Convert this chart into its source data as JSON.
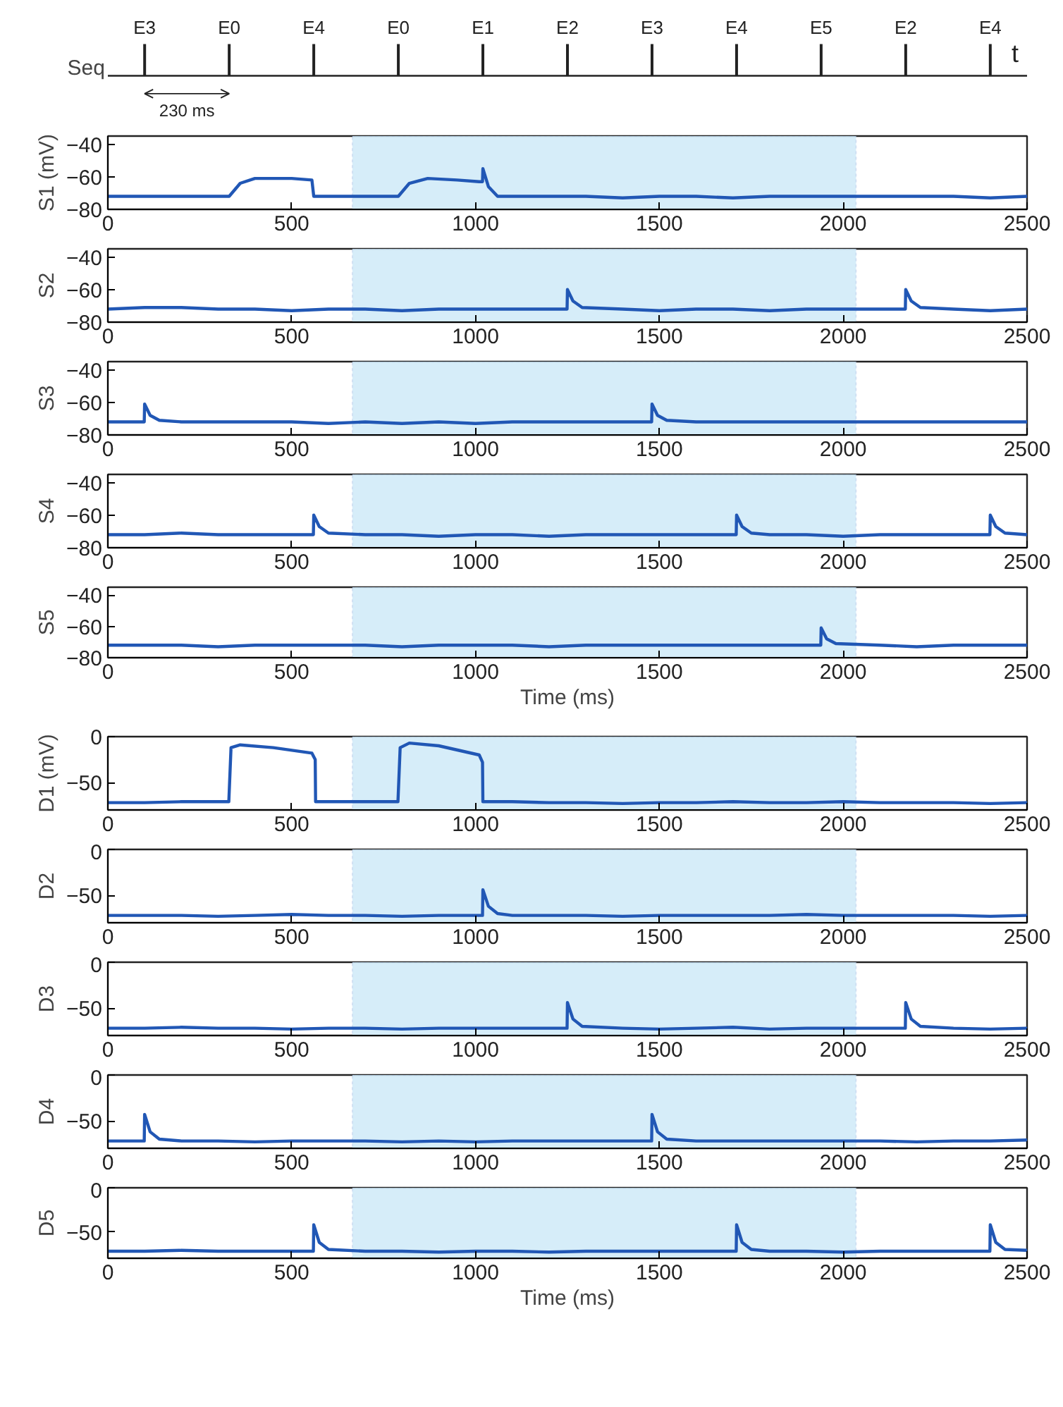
{
  "chart_data": [
    {
      "type": "other",
      "ylabel": "Seq",
      "xlabel": "t",
      "categories": [
        "E3",
        "E0",
        "E4",
        "E0",
        "E1",
        "E2",
        "E3",
        "E4",
        "E5",
        "E2",
        "E4"
      ],
      "annotations": [
        "230 ms"
      ]
    },
    {
      "type": "line",
      "ylabel": "S1 (mV)",
      "color": "#2157b5",
      "xlim": [
        0,
        2500
      ],
      "ylim": [
        -80,
        -35
      ],
      "xticks": [
        0,
        500,
        1000,
        1500,
        2000,
        2500
      ],
      "yticks": [
        -40,
        -60,
        -80
      ],
      "bands": [
        {
          "axis": "x",
          "from": 665,
          "to": 2035,
          "color": "#cfeaf8"
        }
      ],
      "x": [
        0,
        100,
        200,
        300,
        330,
        360,
        400,
        500,
        555,
        560,
        600,
        700,
        790,
        820,
        870,
        950,
        1010,
        1019,
        1020,
        1035,
        1060,
        1100,
        1200,
        1300,
        1400,
        1500,
        1600,
        1700,
        1800,
        1900,
        2000,
        2100,
        2200,
        2300,
        2400,
        2500
      ],
      "values": [
        -72,
        -72,
        -72,
        -72,
        -72,
        -64,
        -61,
        -61,
        -62,
        -72,
        -72,
        -72,
        -72,
        -64,
        -61,
        -62,
        -63,
        -63,
        -55,
        -66,
        -72,
        -72,
        -72,
        -72,
        -73,
        -72,
        -72,
        -73,
        -72,
        -72,
        -72,
        -72,
        -72,
        -72,
        -73,
        -72
      ]
    },
    {
      "type": "line",
      "ylabel": "S2",
      "color": "#2157b5",
      "xlim": [
        0,
        2500
      ],
      "ylim": [
        -80,
        -35
      ],
      "xticks": [
        0,
        500,
        1000,
        1500,
        2000,
        2500
      ],
      "yticks": [
        -40,
        -60,
        -80
      ],
      "bands": [
        {
          "axis": "x",
          "from": 665,
          "to": 2035,
          "color": "#cfeaf8"
        }
      ],
      "x": [
        0,
        100,
        200,
        300,
        400,
        500,
        600,
        700,
        800,
        900,
        1000,
        1100,
        1200,
        1249,
        1250,
        1265,
        1290,
        1400,
        1500,
        1600,
        1700,
        1800,
        1900,
        2000,
        2100,
        2169,
        2170,
        2185,
        2210,
        2300,
        2400,
        2500
      ],
      "values": [
        -72,
        -71,
        -71,
        -72,
        -72,
        -73,
        -72,
        -72,
        -73,
        -72,
        -72,
        -72,
        -72,
        -72,
        -60,
        -67,
        -71,
        -72,
        -73,
        -72,
        -72,
        -73,
        -72,
        -72,
        -72,
        -72,
        -60,
        -67,
        -71,
        -72,
        -73,
        -72
      ]
    },
    {
      "type": "line",
      "ylabel": "S3",
      "color": "#2157b5",
      "xlim": [
        0,
        2500
      ],
      "ylim": [
        -80,
        -35
      ],
      "xticks": [
        0,
        500,
        1000,
        1500,
        2000,
        2500
      ],
      "yticks": [
        -40,
        -60,
        -80
      ],
      "bands": [
        {
          "axis": "x",
          "from": 665,
          "to": 2035,
          "color": "#cfeaf8"
        }
      ],
      "x": [
        0,
        99,
        100,
        115,
        140,
        200,
        300,
        400,
        500,
        600,
        700,
        800,
        900,
        1000,
        1100,
        1200,
        1300,
        1400,
        1479,
        1480,
        1495,
        1520,
        1600,
        1700,
        1800,
        1900,
        2000,
        2100,
        2200,
        2300,
        2400,
        2500
      ],
      "values": [
        -72,
        -72,
        -61,
        -68,
        -71,
        -72,
        -72,
        -72,
        -72,
        -73,
        -72,
        -73,
        -72,
        -73,
        -72,
        -72,
        -72,
        -72,
        -72,
        -61,
        -68,
        -71,
        -72,
        -72,
        -72,
        -72,
        -72,
        -72,
        -72,
        -72,
        -72,
        -72
      ]
    },
    {
      "type": "line",
      "ylabel": "S4",
      "color": "#2157b5",
      "xlim": [
        0,
        2500
      ],
      "ylim": [
        -80,
        -35
      ],
      "xticks": [
        0,
        500,
        1000,
        1500,
        2000,
        2500
      ],
      "yticks": [
        -40,
        -60,
        -80
      ],
      "bands": [
        {
          "axis": "x",
          "from": 665,
          "to": 2035,
          "color": "#cfeaf8"
        }
      ],
      "x": [
        0,
        100,
        200,
        300,
        400,
        500,
        559,
        560,
        575,
        600,
        700,
        800,
        900,
        1000,
        1100,
        1200,
        1300,
        1400,
        1500,
        1600,
        1709,
        1710,
        1725,
        1750,
        1800,
        1900,
        2000,
        2100,
        2200,
        2300,
        2399,
        2400,
        2415,
        2440,
        2500
      ],
      "values": [
        -72,
        -72,
        -71,
        -72,
        -72,
        -72,
        -72,
        -60,
        -67,
        -71,
        -72,
        -72,
        -73,
        -72,
        -72,
        -73,
        -72,
        -72,
        -72,
        -72,
        -72,
        -60,
        -67,
        -71,
        -72,
        -72,
        -73,
        -72,
        -72,
        -72,
        -72,
        -60,
        -67,
        -71,
        -72
      ]
    },
    {
      "type": "line",
      "ylabel": "S5",
      "xlabel": "Time (ms)",
      "color": "#2157b5",
      "xlim": [
        0,
        2500
      ],
      "ylim": [
        -80,
        -35
      ],
      "xticks": [
        0,
        500,
        1000,
        1500,
        2000,
        2500
      ],
      "yticks": [
        -40,
        -60,
        -80
      ],
      "bands": [
        {
          "axis": "x",
          "from": 665,
          "to": 2035,
          "color": "#cfeaf8"
        }
      ],
      "x": [
        0,
        100,
        200,
        300,
        400,
        500,
        600,
        700,
        800,
        900,
        1000,
        1100,
        1200,
        1300,
        1400,
        1500,
        1600,
        1700,
        1800,
        1939,
        1940,
        1955,
        1980,
        2100,
        2200,
        2300,
        2400,
        2500
      ],
      "values": [
        -72,
        -72,
        -72,
        -73,
        -72,
        -72,
        -72,
        -72,
        -73,
        -72,
        -72,
        -72,
        -73,
        -72,
        -72,
        -72,
        -72,
        -72,
        -72,
        -72,
        -61,
        -68,
        -71,
        -72,
        -73,
        -72,
        -72,
        -72
      ]
    },
    {
      "type": "line",
      "ylabel": "D1 (mV)",
      "color": "#2157b5",
      "xlim": [
        0,
        2500
      ],
      "ylim": [
        -80,
        0
      ],
      "xticks": [
        0,
        500,
        1000,
        1500,
        2000,
        2500
      ],
      "yticks": [
        0,
        -50
      ],
      "bands": [
        {
          "axis": "x",
          "from": 665,
          "to": 2035,
          "color": "#cfeaf8"
        }
      ],
      "x": [
        0,
        100,
        200,
        300,
        329,
        335,
        360,
        450,
        555,
        564,
        565,
        600,
        700,
        789,
        795,
        820,
        900,
        1010,
        1019,
        1020,
        1100,
        1200,
        1300,
        1400,
        1500,
        1600,
        1700,
        1800,
        1900,
        2000,
        2100,
        2200,
        2300,
        2400,
        2500
      ],
      "values": [
        -72,
        -72,
        -71,
        -71,
        -71,
        -12,
        -9,
        -12,
        -18,
        -25,
        -71,
        -71,
        -71,
        -71,
        -12,
        -7,
        -10,
        -20,
        -28,
        -71,
        -71,
        -72,
        -72,
        -73,
        -72,
        -72,
        -71,
        -72,
        -72,
        -71,
        -72,
        -72,
        -72,
        -73,
        -72
      ]
    },
    {
      "type": "line",
      "ylabel": "D2",
      "color": "#2157b5",
      "xlim": [
        0,
        2500
      ],
      "ylim": [
        -80,
        0
      ],
      "xticks": [
        0,
        500,
        1000,
        1500,
        2000,
        2500
      ],
      "yticks": [
        0,
        -50
      ],
      "bands": [
        {
          "axis": "x",
          "from": 665,
          "to": 2035,
          "color": "#cfeaf8"
        }
      ],
      "x": [
        0,
        100,
        200,
        300,
        400,
        500,
        600,
        700,
        800,
        900,
        1000,
        1019,
        1020,
        1035,
        1060,
        1100,
        1200,
        1300,
        1400,
        1500,
        1600,
        1700,
        1800,
        1900,
        2000,
        2100,
        2200,
        2300,
        2400,
        2500
      ],
      "values": [
        -72,
        -72,
        -72,
        -73,
        -72,
        -71,
        -72,
        -72,
        -73,
        -72,
        -72,
        -72,
        -44,
        -62,
        -70,
        -72,
        -72,
        -72,
        -73,
        -72,
        -72,
        -72,
        -72,
        -71,
        -72,
        -72,
        -72,
        -72,
        -73,
        -72
      ]
    },
    {
      "type": "line",
      "ylabel": "D3",
      "color": "#2157b5",
      "xlim": [
        0,
        2500
      ],
      "ylim": [
        -80,
        0
      ],
      "xticks": [
        0,
        500,
        1000,
        1500,
        2000,
        2500
      ],
      "yticks": [
        0,
        -50
      ],
      "bands": [
        {
          "axis": "x",
          "from": 665,
          "to": 2035,
          "color": "#cfeaf8"
        }
      ],
      "x": [
        0,
        100,
        200,
        300,
        400,
        500,
        600,
        700,
        800,
        900,
        1000,
        1100,
        1200,
        1249,
        1250,
        1265,
        1290,
        1400,
        1500,
        1600,
        1700,
        1800,
        1900,
        2000,
        2100,
        2169,
        2170,
        2185,
        2210,
        2300,
        2400,
        2500
      ],
      "values": [
        -72,
        -72,
        -71,
        -72,
        -72,
        -73,
        -72,
        -72,
        -73,
        -72,
        -72,
        -72,
        -72,
        -72,
        -44,
        -62,
        -70,
        -72,
        -73,
        -72,
        -71,
        -73,
        -72,
        -72,
        -72,
        -72,
        -44,
        -62,
        -70,
        -72,
        -73,
        -72
      ]
    },
    {
      "type": "line",
      "ylabel": "D4",
      "color": "#2157b5",
      "xlim": [
        0,
        2500
      ],
      "ylim": [
        -80,
        0
      ],
      "xticks": [
        0,
        500,
        1000,
        1500,
        2000,
        2500
      ],
      "yticks": [
        0,
        -50
      ],
      "bands": [
        {
          "axis": "x",
          "from": 665,
          "to": 2035,
          "color": "#cfeaf8"
        }
      ],
      "x": [
        0,
        99,
        100,
        115,
        140,
        200,
        300,
        400,
        500,
        600,
        700,
        800,
        900,
        1000,
        1100,
        1200,
        1300,
        1400,
        1479,
        1480,
        1495,
        1520,
        1600,
        1700,
        1800,
        1900,
        2000,
        2100,
        2200,
        2300,
        2400,
        2500
      ],
      "values": [
        -72,
        -72,
        -43,
        -62,
        -70,
        -72,
        -72,
        -73,
        -72,
        -72,
        -72,
        -73,
        -72,
        -73,
        -72,
        -72,
        -72,
        -72,
        -72,
        -43,
        -62,
        -70,
        -72,
        -72,
        -72,
        -72,
        -72,
        -72,
        -73,
        -72,
        -72,
        -71
      ]
    },
    {
      "type": "line",
      "ylabel": "D5",
      "xlabel": "Time (ms)",
      "color": "#2157b5",
      "xlim": [
        0,
        2500
      ],
      "ylim": [
        -80,
        0
      ],
      "xticks": [
        0,
        500,
        1000,
        1500,
        2000,
        2500
      ],
      "yticks": [
        0,
        -50
      ],
      "bands": [
        {
          "axis": "x",
          "from": 665,
          "to": 2035,
          "color": "#cfeaf8"
        }
      ],
      "x": [
        0,
        100,
        200,
        300,
        400,
        500,
        559,
        560,
        575,
        600,
        700,
        800,
        900,
        1000,
        1100,
        1200,
        1300,
        1400,
        1500,
        1600,
        1709,
        1710,
        1725,
        1750,
        1800,
        1900,
        2000,
        2100,
        2200,
        2300,
        2399,
        2400,
        2415,
        2440,
        2500
      ],
      "values": [
        -72,
        -72,
        -71,
        -72,
        -72,
        -72,
        -72,
        -42,
        -62,
        -70,
        -72,
        -72,
        -73,
        -72,
        -72,
        -73,
        -72,
        -72,
        -72,
        -72,
        -72,
        -42,
        -62,
        -70,
        -72,
        -72,
        -73,
        -72,
        -72,
        -72,
        -72,
        -42,
        -62,
        -70,
        -71
      ]
    }
  ]
}
